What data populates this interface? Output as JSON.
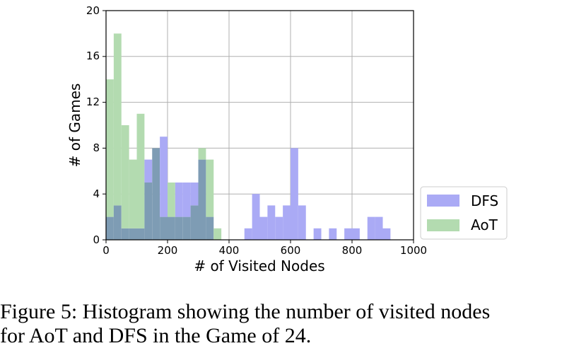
{
  "chart_data": {
    "type": "bar",
    "title": "",
    "xlabel": "# of Visited Nodes",
    "ylabel": "# of Games",
    "xlim": [
      0,
      1000
    ],
    "ylim": [
      0,
      20
    ],
    "xticks": [
      "0",
      "200",
      "400",
      "600",
      "800",
      "1000"
    ],
    "yticks": [
      "0",
      "4",
      "8",
      "12",
      "16",
      "20"
    ],
    "grid": true,
    "legend_position": "outside-right",
    "bin_width": 25,
    "bin_starts": [
      0,
      25,
      50,
      75,
      100,
      125,
      150,
      175,
      200,
      225,
      250,
      275,
      300,
      325,
      350,
      375,
      400,
      425,
      450,
      475,
      500,
      525,
      550,
      575,
      600,
      625,
      650,
      675,
      700,
      725,
      750,
      775,
      800,
      825,
      850,
      875,
      900,
      925,
      950,
      975
    ],
    "series": [
      {
        "name": "DFS",
        "color": "#aaaaf5",
        "values": [
          2,
          3,
          1,
          1,
          1,
          7,
          8,
          9,
          2,
          5,
          5,
          5,
          7,
          2,
          0,
          0,
          0,
          0,
          1,
          4,
          2,
          3,
          2,
          3,
          8,
          3,
          0,
          1,
          0,
          1,
          0,
          1,
          1,
          0,
          2,
          2,
          1,
          0,
          0,
          0
        ]
      },
      {
        "name": "AoT",
        "color": "#b3dbb0",
        "values": [
          14,
          18,
          10,
          7,
          11,
          5,
          8,
          2,
          5,
          2,
          2,
          3,
          8,
          7,
          1,
          0,
          0,
          0,
          0,
          0,
          0,
          0,
          0,
          0,
          0,
          0,
          0,
          0,
          0,
          0,
          0,
          0,
          0,
          0,
          0,
          0,
          0,
          0,
          0,
          0
        ]
      }
    ],
    "overlap_color": "#7e9cb4"
  },
  "caption": {
    "line1": "Figure 5: Histogram showing the number of visited nodes",
    "line2": "for AoT and DFS in the Game of 24."
  }
}
